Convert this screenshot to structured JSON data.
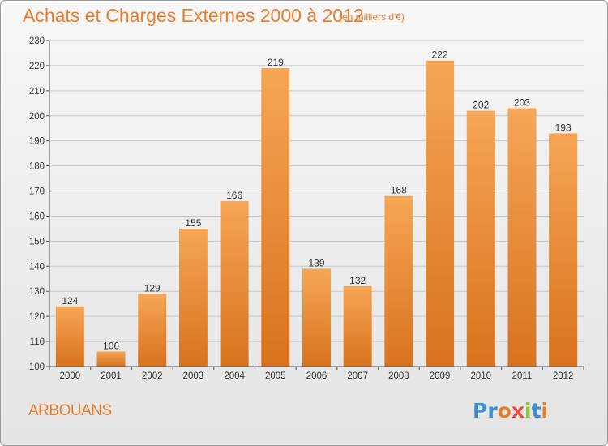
{
  "title": "Achats et Charges Externes 2000 à 2012",
  "units": "(en milliers d'€)",
  "place": "ARBOUANS",
  "logo": {
    "text": "Proxiti",
    "colors": [
      "#3b8fd1",
      "#3b8fd1",
      "#ea7d2c",
      "#e74c3c",
      "#8dc63f",
      "#3b8fd1",
      "#ea7d2c"
    ]
  },
  "colors": {
    "accent": "#ea7d2c",
    "bar_light": "#f6a656",
    "bar_dark": "#d8721d"
  },
  "chart_data": {
    "type": "bar",
    "categories": [
      "2000",
      "2001",
      "2002",
      "2003",
      "2004",
      "2005",
      "2006",
      "2007",
      "2008",
      "2009",
      "2010",
      "2011",
      "2012"
    ],
    "values": [
      124,
      106,
      129,
      155,
      166,
      219,
      139,
      132,
      168,
      222,
      202,
      203,
      193
    ],
    "title": "Achats et Charges Externes 2000 à 2012",
    "xlabel": "",
    "ylabel": "",
    "ylim": [
      100,
      230
    ],
    "yticks": [
      100,
      110,
      120,
      130,
      140,
      150,
      160,
      170,
      180,
      190,
      200,
      210,
      220,
      230
    ],
    "grid": true,
    "data_labels": true
  }
}
